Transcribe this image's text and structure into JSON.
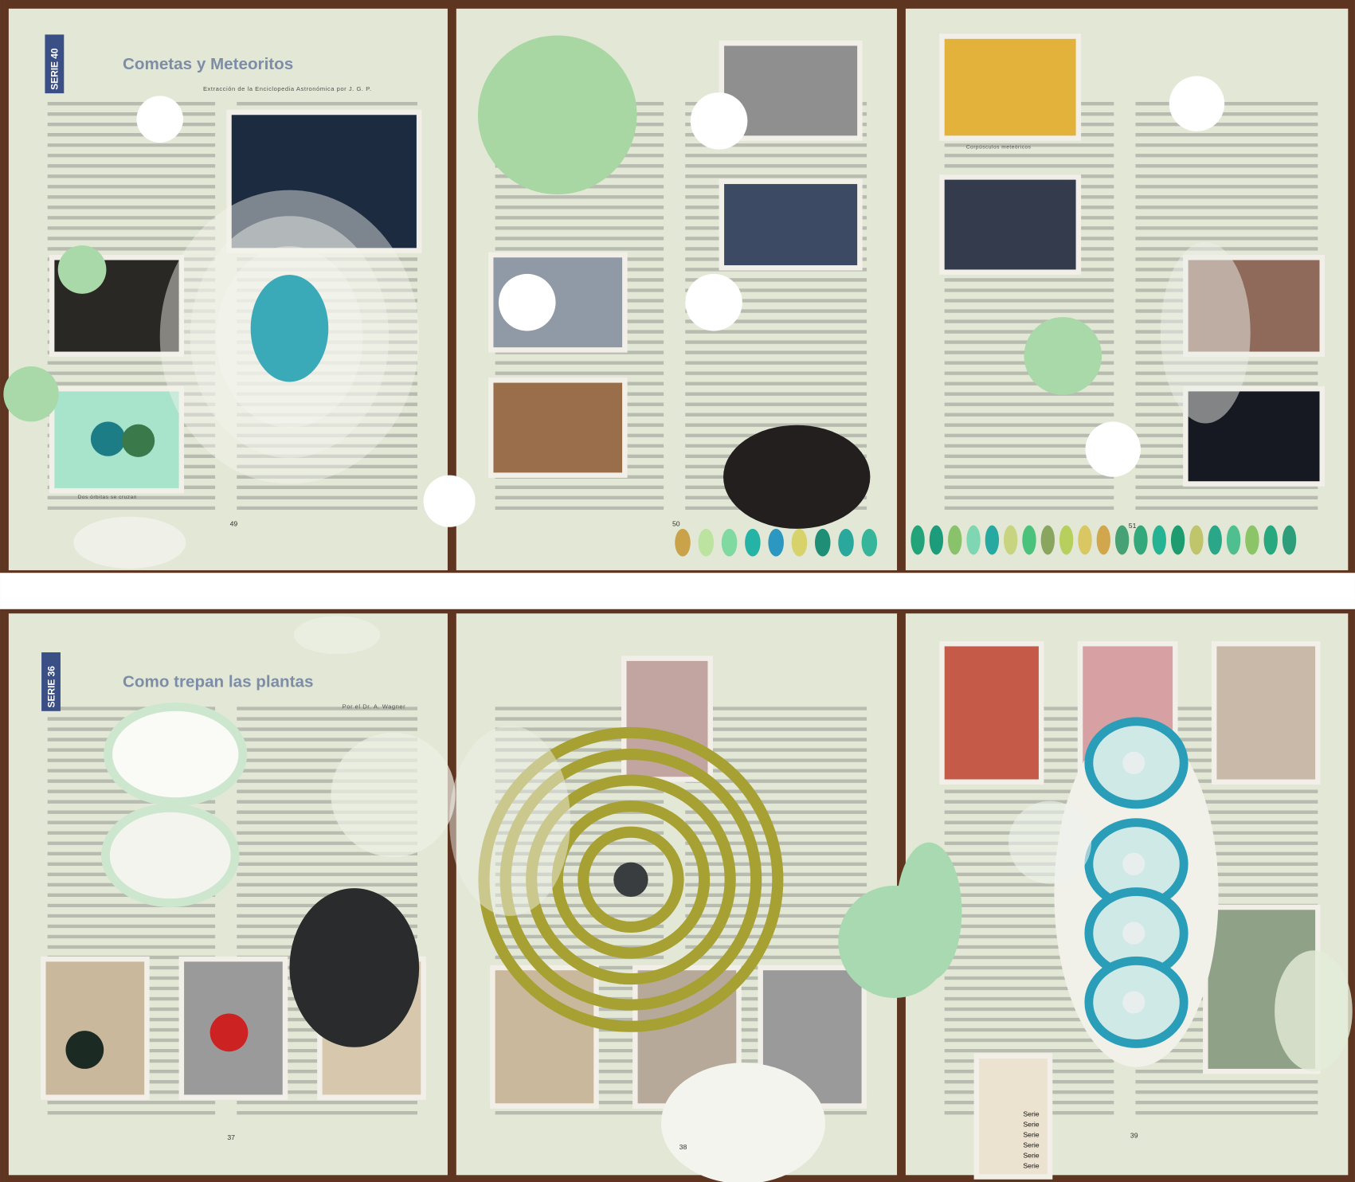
{
  "panels": [
    {
      "series": "SERIE 40",
      "title": "Cometas y Meteoritos",
      "byline": "Extracción de la Enciclopedia Astronómica por J. G. P.",
      "caption": "Dos órbitas se cruzan",
      "page": "49"
    },
    {
      "page": "50"
    },
    {
      "caption": "Corpúsculos meteóricos",
      "page": "51"
    },
    {
      "series": "SERIE 36",
      "title": "Como trepan las plantas",
      "byline": "Por el Dr. A. Wagner",
      "page": "37"
    },
    {
      "page": "38"
    },
    {
      "page": "39",
      "labels": [
        "Serie",
        "Serie",
        "Serie",
        "Serie",
        "Serie",
        "Serie"
      ]
    }
  ]
}
